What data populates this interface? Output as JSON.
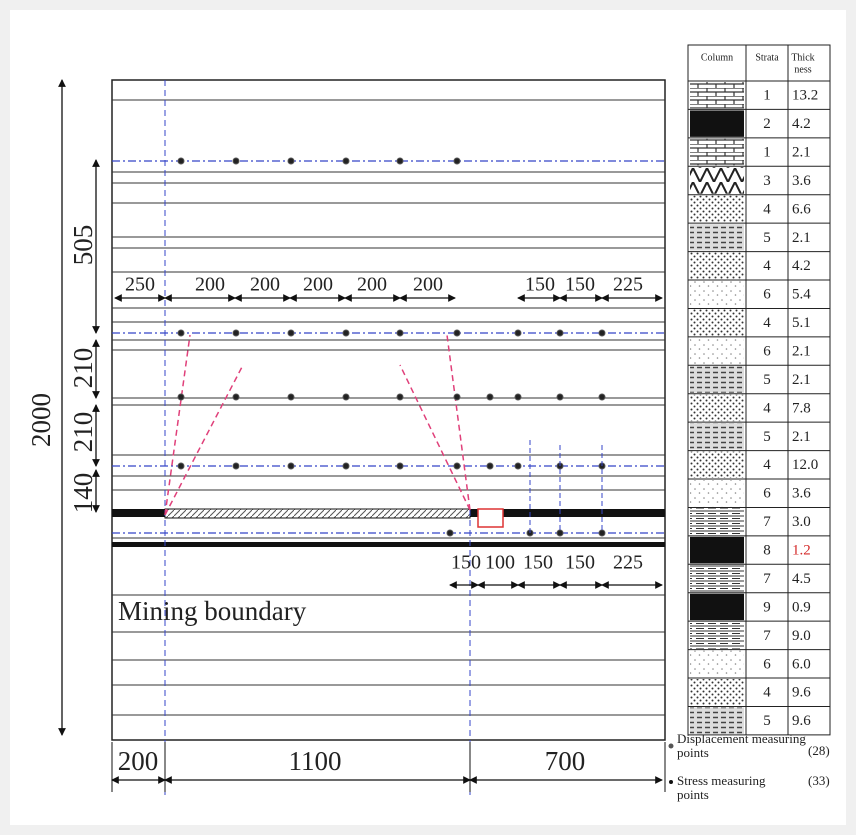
{
  "dimensions": {
    "vertical": [
      "2000",
      "505",
      "210",
      "210",
      "140"
    ],
    "top": [
      "250",
      "200",
      "200",
      "200",
      "200",
      "200",
      "150",
      "150",
      "225"
    ],
    "lower": [
      "150",
      "100",
      "150",
      "150",
      "225"
    ],
    "bottom": [
      "200",
      "1100",
      "700"
    ]
  },
  "mining_boundary": "Mining boundary",
  "strata_table": {
    "header": {
      "column": "Column",
      "strata": "Strata",
      "thickness": [
        "Thick",
        "ness"
      ]
    },
    "rows": [
      {
        "strata": "1",
        "thickness": "13.2"
      },
      {
        "strata": "2",
        "thickness": "4.2"
      },
      {
        "strata": "1",
        "thickness": "2.1"
      },
      {
        "strata": "3",
        "thickness": "3.6"
      },
      {
        "strata": "4",
        "thickness": "6.6"
      },
      {
        "strata": "5",
        "thickness": "2.1"
      },
      {
        "strata": "4",
        "thickness": "4.2"
      },
      {
        "strata": "6",
        "thickness": "5.4"
      },
      {
        "strata": "4",
        "thickness": "5.1"
      },
      {
        "strata": "6",
        "thickness": "2.1"
      },
      {
        "strata": "5",
        "thickness": "2.1"
      },
      {
        "strata": "4",
        "thickness": "7.8"
      },
      {
        "strata": "5",
        "thickness": "2.1"
      },
      {
        "strata": "4",
        "thickness": "12.0"
      },
      {
        "strata": "6",
        "thickness": "3.6"
      },
      {
        "strata": "7",
        "thickness": "3.0"
      },
      {
        "strata": "8",
        "thickness": "1.2",
        "color": "#d42a2a"
      },
      {
        "strata": "7",
        "thickness": "4.5"
      },
      {
        "strata": "9",
        "thickness": "0.9"
      },
      {
        "strata": "7",
        "thickness": "9.0"
      },
      {
        "strata": "6",
        "thickness": "6.0"
      },
      {
        "strata": "4",
        "thickness": "9.6"
      },
      {
        "strata": "5",
        "thickness": "9.6"
      }
    ]
  },
  "legend": [
    {
      "label": "Displacement measuring points",
      "count": "(28)"
    },
    {
      "label": "Stress measuring points",
      "count": "(33)"
    }
  ]
}
